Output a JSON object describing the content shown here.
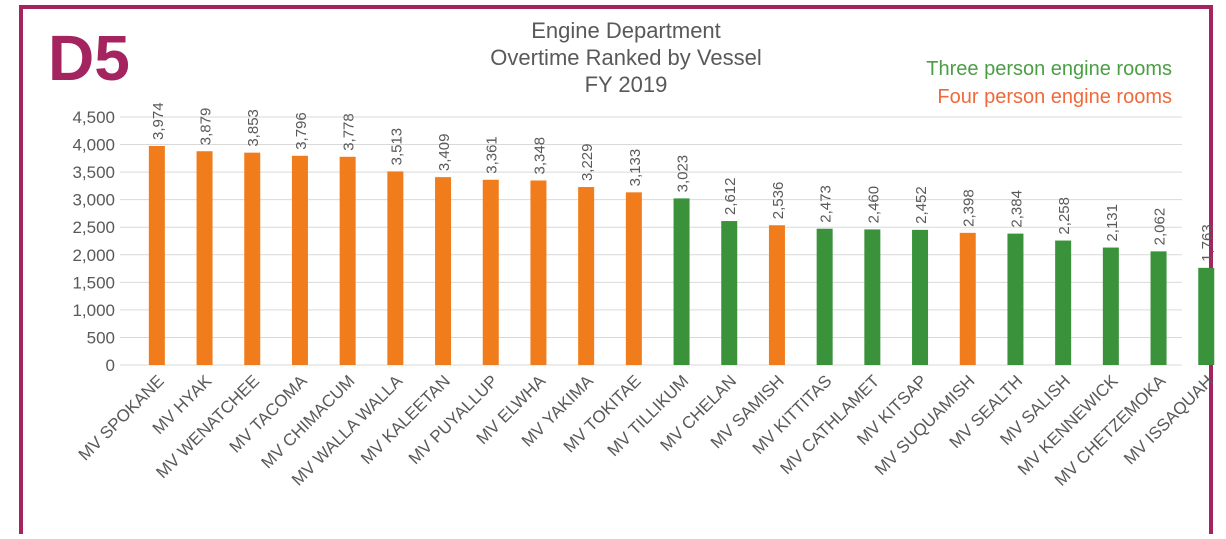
{
  "chart_data": {
    "type": "bar",
    "badge": "D5",
    "title": [
      "Engine Department",
      "Overtime Ranked by Vessel",
      "FY 2019"
    ],
    "legend": [
      {
        "label": "Three person engine rooms",
        "color": "#4c9e46"
      },
      {
        "label": "Four  person engine rooms",
        "color": "#ee6a3c"
      }
    ],
    "categories": [
      "MV SPOKANE",
      "MV HYAK",
      "MV WENATCHEE",
      "MV TACOMA",
      "MV CHIMACUM",
      "MV WALLA WALLA",
      "MV KALEETAN",
      "MV PUYALLUP",
      "MV ELWHA",
      "MV YAKIMA",
      "MV TOKITAE",
      "MV TILLIKUM",
      "MV CHELAN",
      "MV SAMISH",
      "MV KITTITAS",
      "MV CATHLAMET",
      "MV KITSAP",
      "MV SUQUAMISH",
      "MV SEALTH",
      "MV SALISH",
      "MV KENNEWICK",
      "MV CHETZEMOKA",
      "MV ISSAQUAH"
    ],
    "values": [
      3974,
      3879,
      3853,
      3796,
      3778,
      3513,
      3409,
      3361,
      3348,
      3229,
      3133,
      3023,
      2612,
      2536,
      2473,
      2460,
      2452,
      2398,
      2384,
      2258,
      2131,
      2062,
      1763
    ],
    "value_labels": [
      "3,974",
      "3,879",
      "3,853",
      "3,796",
      "3,778",
      "3,513",
      "3,409",
      "3,361",
      "3,348",
      "3,229",
      "3,133",
      "3,023",
      "2,612",
      "2,536",
      "2,473",
      "2,460",
      "2,452",
      "2,398",
      "2,384",
      "2,258",
      "2,131",
      "2,062",
      "1,763"
    ],
    "colors": [
      "#f07c1c",
      "#f07c1c",
      "#f07c1c",
      "#f07c1c",
      "#f07c1c",
      "#f07c1c",
      "#f07c1c",
      "#f07c1c",
      "#f07c1c",
      "#f07c1c",
      "#f07c1c",
      "#3a923a",
      "#3a923a",
      "#f07c1c",
      "#3a923a",
      "#3a923a",
      "#3a923a",
      "#f07c1c",
      "#3a923a",
      "#3a923a",
      "#3a923a",
      "#3a923a",
      "#3a923a"
    ],
    "ylim": [
      0,
      4500
    ],
    "yticks": [
      0,
      500,
      {
        "value": 1000,
        "label": "1,000"
      },
      {
        "value": 1500,
        "label": "1,500"
      },
      {
        "value": 2000,
        "label": "2,000"
      },
      {
        "value": 2500,
        "label": "2,500"
      },
      {
        "value": 3000,
        "label": "3,000"
      },
      {
        "value": 3500,
        "label": "3,500"
      },
      {
        "value": 4000,
        "label": "4,000"
      },
      {
        "value": 4500,
        "label": "4,500"
      }
    ],
    "grid": true
  }
}
